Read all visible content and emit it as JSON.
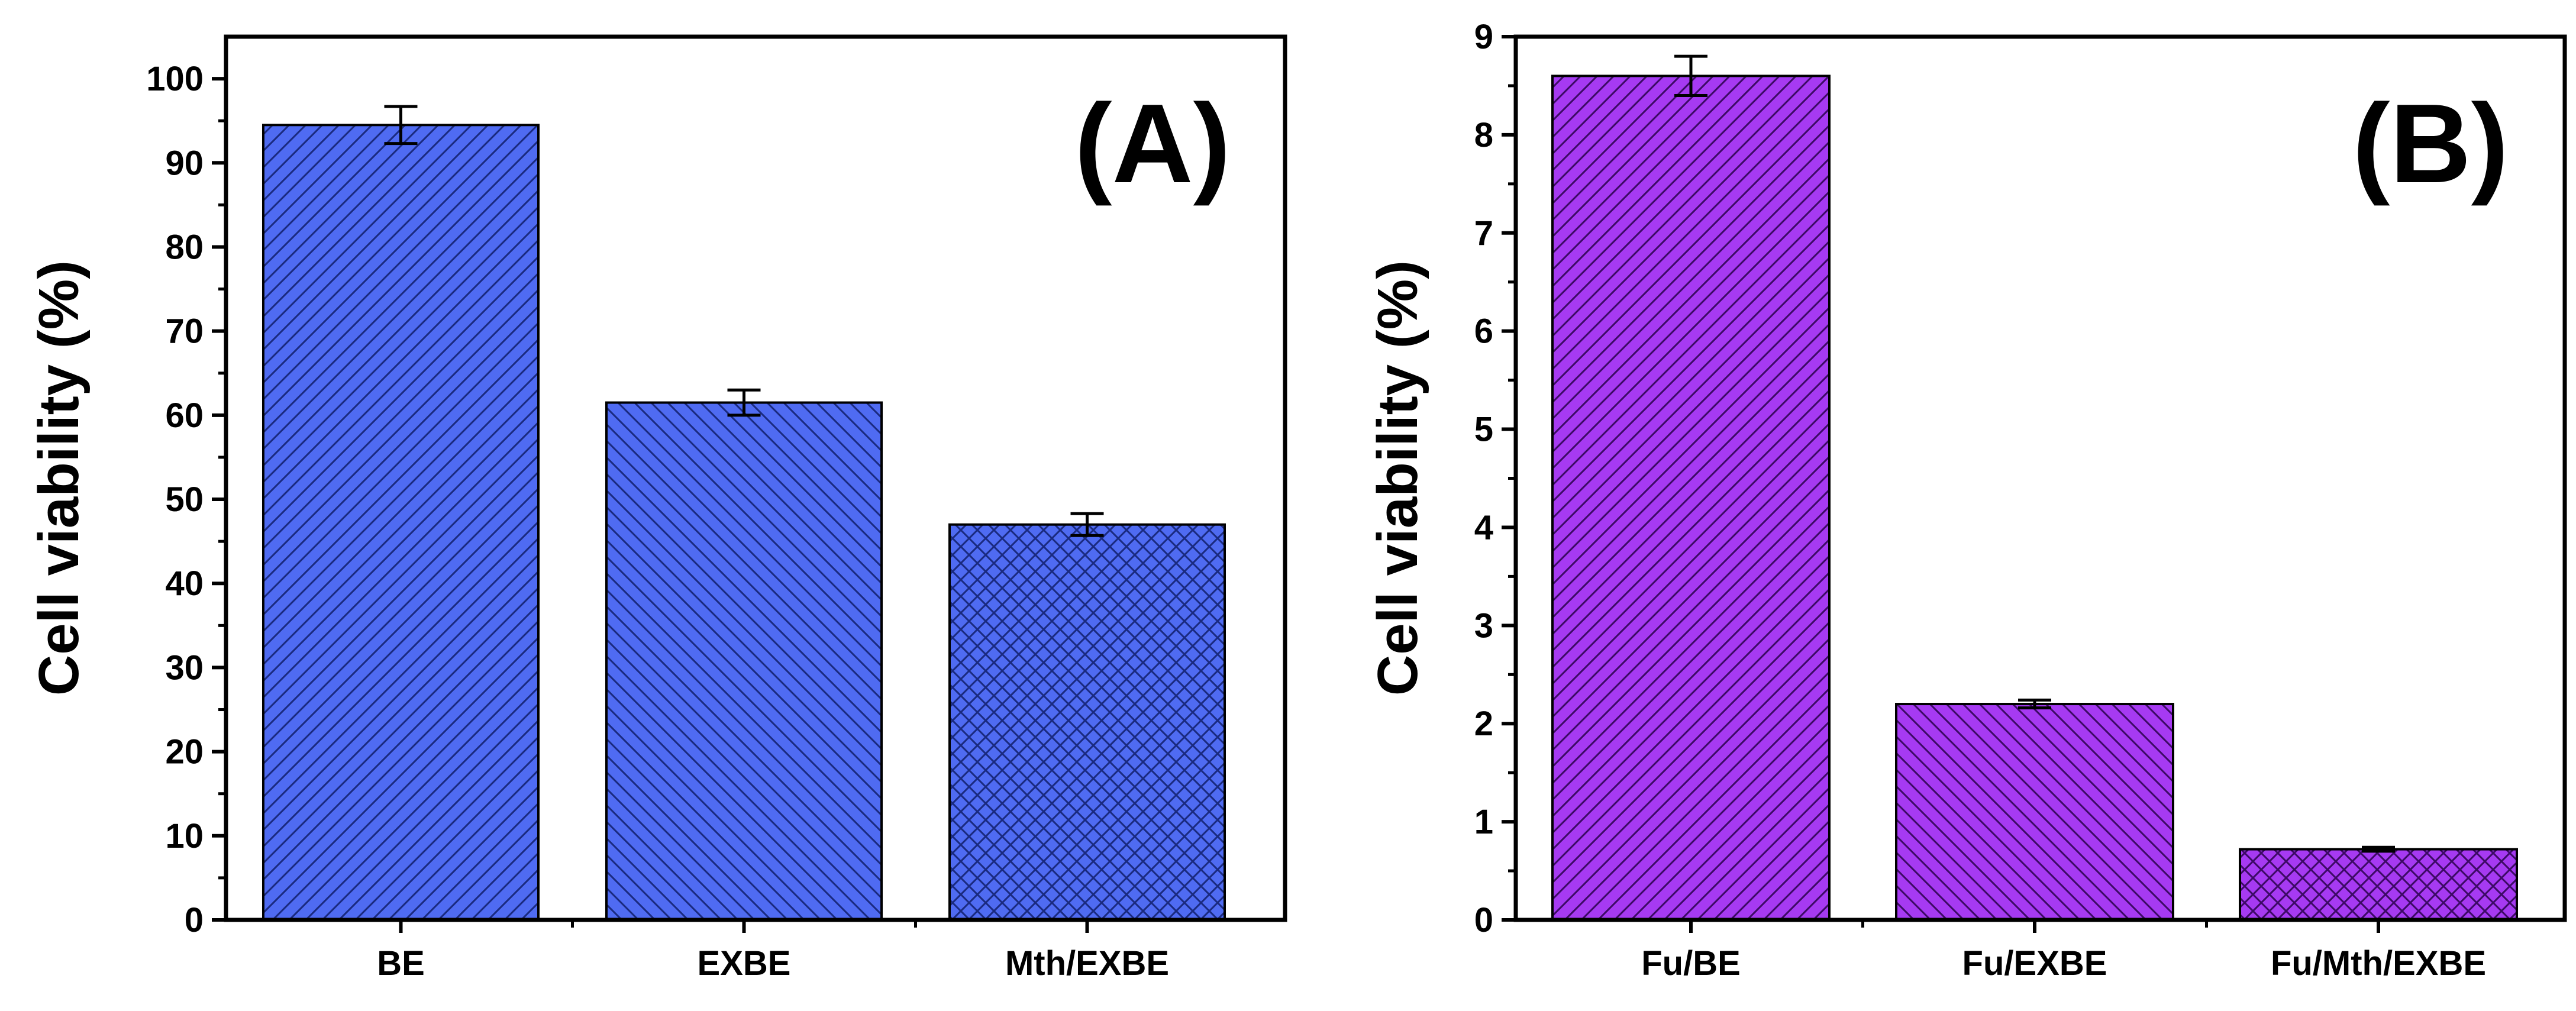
{
  "colors": {
    "panel_a_bar": "#4F6BF2",
    "panel_b_bar": "#A63AF2",
    "axis": "#000000",
    "background": "#FFFFFF"
  },
  "chart_data": [
    {
      "type": "bar",
      "panel_label": "(A)",
      "title": "",
      "xlabel": "",
      "ylabel": "Cell viability (%)",
      "categories": [
        "BE",
        "EXBE",
        "Mth/EXBE"
      ],
      "values": [
        94.5,
        61.5,
        47.0
      ],
      "errors": [
        2.2,
        1.5,
        1.3
      ],
      "hatch": [
        "diagonal-up",
        "diagonal-down",
        "crosshatch"
      ],
      "ylim": [
        0,
        105
      ],
      "yticks": [
        0,
        10,
        20,
        30,
        40,
        50,
        60,
        70,
        80,
        90,
        100
      ],
      "ytick_labels": [
        "0",
        "10",
        "20",
        "30",
        "40",
        "50",
        "60",
        "70",
        "80",
        "90",
        "100"
      ],
      "grid": false,
      "legend": "none"
    },
    {
      "type": "bar",
      "panel_label": "(B)",
      "title": "",
      "xlabel": "",
      "ylabel": "Cell viability (%)",
      "categories": [
        "Fu/BE",
        "Fu/EXBE",
        "Fu/Mth/EXBE"
      ],
      "values": [
        8.6,
        2.2,
        0.72
      ],
      "errors": [
        0.2,
        0.04,
        0.02
      ],
      "hatch": [
        "diagonal-up",
        "diagonal-down",
        "crosshatch"
      ],
      "ylim": [
        0,
        9
      ],
      "yticks": [
        0,
        1,
        2,
        3,
        4,
        5,
        6,
        7,
        8,
        9
      ],
      "ytick_labels": [
        "0",
        "1",
        "2",
        "3",
        "4",
        "5",
        "6",
        "7",
        "8",
        "9"
      ],
      "grid": false,
      "legend": "none"
    }
  ]
}
